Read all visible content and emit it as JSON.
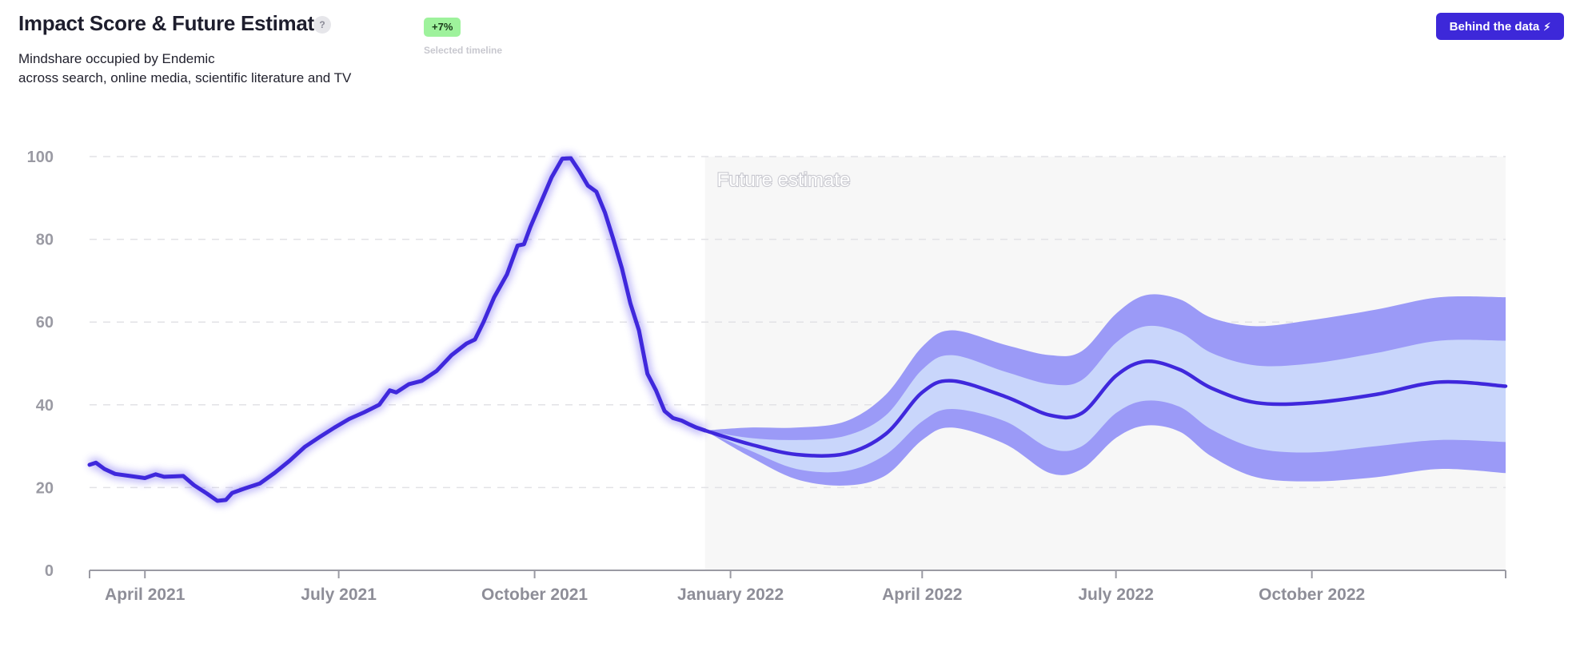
{
  "header": {
    "title": "Impact Score & Future Estimate",
    "help_label": "?",
    "subtitle_line1": "Mindshare occupied by Endemic",
    "subtitle_line2": "across search, online media, scientific literature and TV",
    "badge": "+7%",
    "badge_caption": "Selected timeline",
    "cta_label": "Behind the data",
    "cta_icon": "lightning-icon"
  },
  "colors": {
    "accent": "#3d28d9",
    "line": "#3f28dc",
    "band_outer": "#9b9af7",
    "band_inner": "#c9d6fb",
    "future_bg": "#f7f7f7",
    "badge_bg": "#9ef29c",
    "grid": "#e2e2e6"
  },
  "chart_data": {
    "type": "line",
    "title": "Impact Score & Future Estimate",
    "xlabel": "",
    "ylabel": "",
    "ylim": [
      0,
      100
    ],
    "yticks": [
      0,
      20,
      40,
      60,
      80,
      100
    ],
    "xlim": [
      "2021-03-06",
      "2022-12-31"
    ],
    "x_ticks": [
      {
        "date": "2021-04-01",
        "label": "April 2021"
      },
      {
        "date": "2021-07-01",
        "label": "July 2021"
      },
      {
        "date": "2021-10-01",
        "label": "October 2021"
      },
      {
        "date": "2022-01-01",
        "label": "January 2022"
      },
      {
        "date": "2022-04-01",
        "label": "April 2022"
      },
      {
        "date": "2022-07-01",
        "label": "July 2022"
      },
      {
        "date": "2022-10-01",
        "label": "October 2022"
      }
    ],
    "grid": true,
    "annotation": "Future estimate",
    "future_start": "2021-12-20",
    "series": [
      {
        "values": [
          [
            "2021-03-06",
            25.5
          ],
          [
            "2021-03-09",
            26.0
          ],
          [
            "2021-03-13",
            24.5
          ],
          [
            "2021-03-18",
            23.3
          ],
          [
            "2021-03-25",
            22.8
          ],
          [
            "2021-04-01",
            22.3
          ],
          [
            "2021-04-06",
            23.2
          ],
          [
            "2021-04-10",
            22.6
          ],
          [
            "2021-04-15",
            22.7
          ],
          [
            "2021-04-19",
            22.8
          ],
          [
            "2021-04-24",
            20.6
          ],
          [
            "2021-04-30",
            18.6
          ],
          [
            "2021-05-05",
            16.8
          ],
          [
            "2021-05-09",
            17.0
          ],
          [
            "2021-05-12",
            18.7
          ],
          [
            "2021-05-18",
            19.8
          ],
          [
            "2021-05-25",
            21.0
          ],
          [
            "2021-06-01",
            23.6
          ],
          [
            "2021-06-08",
            26.5
          ],
          [
            "2021-06-15",
            29.8
          ],
          [
            "2021-06-22",
            32.2
          ],
          [
            "2021-06-29",
            34.5
          ],
          [
            "2021-07-06",
            36.6
          ],
          [
            "2021-07-13",
            38.2
          ],
          [
            "2021-07-20",
            40.0
          ],
          [
            "2021-07-25",
            43.5
          ],
          [
            "2021-07-28",
            43.0
          ],
          [
            "2021-08-03",
            45.0
          ],
          [
            "2021-08-09",
            45.8
          ],
          [
            "2021-08-16",
            48.2
          ],
          [
            "2021-08-23",
            52.0
          ],
          [
            "2021-08-30",
            54.8
          ],
          [
            "2021-09-03",
            55.8
          ],
          [
            "2021-09-07",
            60.0
          ],
          [
            "2021-09-12",
            66.0
          ],
          [
            "2021-09-18",
            71.5
          ],
          [
            "2021-09-23",
            78.5
          ],
          [
            "2021-09-26",
            78.8
          ],
          [
            "2021-09-29",
            83.0
          ],
          [
            "2021-10-04",
            89.0
          ],
          [
            "2021-10-09",
            95.0
          ],
          [
            "2021-10-14",
            99.5
          ],
          [
            "2021-10-18",
            99.6
          ],
          [
            "2021-10-22",
            96.5
          ],
          [
            "2021-10-26",
            93.0
          ],
          [
            "2021-10-30",
            91.5
          ],
          [
            "2021-11-03",
            86.5
          ],
          [
            "2021-11-07",
            80.0
          ],
          [
            "2021-11-11",
            73.0
          ],
          [
            "2021-11-15",
            64.5
          ],
          [
            "2021-11-19",
            58.0
          ],
          [
            "2021-11-23",
            47.5
          ],
          [
            "2021-11-27",
            43.5
          ],
          [
            "2021-12-01",
            38.5
          ],
          [
            "2021-12-05",
            36.8
          ],
          [
            "2021-12-09",
            36.2
          ],
          [
            "2021-12-13",
            35.2
          ],
          [
            "2021-12-16",
            34.5
          ],
          [
            "2021-12-20",
            33.8
          ]
        ]
      },
      {
        "values": [
          [
            "2021-12-20",
            33.8
          ],
          [
            "2022-01-10",
            30.5
          ],
          [
            "2022-02-01",
            28.0
          ],
          [
            "2022-02-24",
            28.2
          ],
          [
            "2022-03-15",
            33.0
          ],
          [
            "2022-04-01",
            43.0
          ],
          [
            "2022-04-15",
            45.8
          ],
          [
            "2022-05-10",
            42.0
          ],
          [
            "2022-05-31",
            37.5
          ],
          [
            "2022-06-15",
            38.0
          ],
          [
            "2022-07-01",
            47.0
          ],
          [
            "2022-07-15",
            50.5
          ],
          [
            "2022-07-31",
            48.5
          ],
          [
            "2022-08-15",
            44.0
          ],
          [
            "2022-09-05",
            40.5
          ],
          [
            "2022-10-01",
            40.5
          ],
          [
            "2022-10-31",
            42.5
          ],
          [
            "2022-11-30",
            45.5
          ],
          [
            "2022-12-31",
            44.5
          ]
        ],
        "band_inner": [
          [
            "2021-12-20",
            33.8,
            33.8
          ],
          [
            "2022-01-10",
            29.0,
            32.0
          ],
          [
            "2022-02-01",
            24.5,
            31.5
          ],
          [
            "2022-02-24",
            24.0,
            32.5
          ],
          [
            "2022-03-15",
            28.0,
            37.5
          ],
          [
            "2022-04-01",
            36.0,
            48.5
          ],
          [
            "2022-04-15",
            39.0,
            52.0
          ],
          [
            "2022-05-10",
            36.0,
            48.0
          ],
          [
            "2022-05-31",
            29.5,
            45.0
          ],
          [
            "2022-06-15",
            30.0,
            46.0
          ],
          [
            "2022-07-01",
            38.0,
            55.0
          ],
          [
            "2022-07-15",
            41.0,
            59.0
          ],
          [
            "2022-07-31",
            39.5,
            57.5
          ],
          [
            "2022-08-15",
            34.0,
            52.5
          ],
          [
            "2022-09-05",
            29.5,
            49.5
          ],
          [
            "2022-10-01",
            28.5,
            50.0
          ],
          [
            "2022-10-31",
            30.0,
            52.5
          ],
          [
            "2022-11-30",
            31.5,
            55.5
          ],
          [
            "2022-12-31",
            31.0,
            55.5
          ]
        ],
        "band_outer": [
          [
            "2021-12-20",
            33.8,
            33.8
          ],
          [
            "2022-01-10",
            27.5,
            34.5
          ],
          [
            "2022-02-01",
            22.0,
            34.5
          ],
          [
            "2022-02-24",
            20.5,
            36.0
          ],
          [
            "2022-03-15",
            23.0,
            42.5
          ],
          [
            "2022-04-01",
            31.5,
            54.0
          ],
          [
            "2022-04-15",
            34.5,
            58.0
          ],
          [
            "2022-05-10",
            30.5,
            54.5
          ],
          [
            "2022-05-31",
            23.5,
            52.0
          ],
          [
            "2022-06-15",
            24.5,
            53.0
          ],
          [
            "2022-07-01",
            32.0,
            62.0
          ],
          [
            "2022-07-15",
            35.0,
            66.5
          ],
          [
            "2022-07-31",
            33.5,
            65.5
          ],
          [
            "2022-08-15",
            27.5,
            61.0
          ],
          [
            "2022-09-05",
            22.5,
            59.0
          ],
          [
            "2022-10-01",
            21.5,
            60.5
          ],
          [
            "2022-10-31",
            22.5,
            63.0
          ],
          [
            "2022-11-30",
            24.5,
            66.0
          ],
          [
            "2022-12-31",
            23.5,
            66.0
          ]
        ]
      }
    ]
  }
}
